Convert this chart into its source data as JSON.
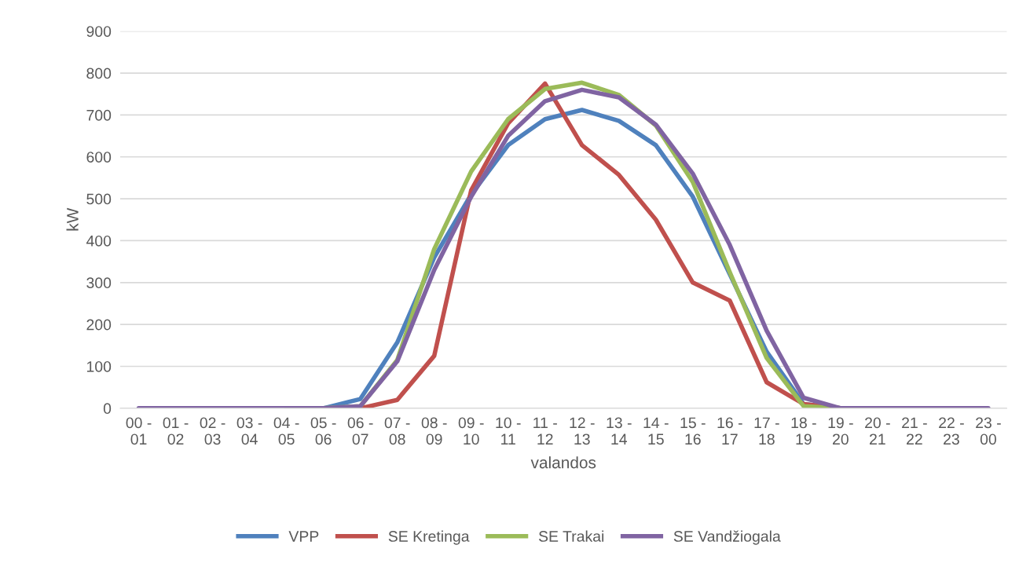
{
  "chart_data": {
    "type": "line",
    "xlabel": "valandos",
    "ylabel": "kW",
    "categories": [
      "00 -\n01",
      "01 -\n02",
      "02 -\n03",
      "03 -\n04",
      "04 -\n05",
      "05 -\n06",
      "06 -\n07",
      "07 -\n08",
      "08 -\n09",
      "09 -\n10",
      "10 -\n11",
      "11 -\n12",
      "12 -\n13",
      "13 -\n14",
      "14 -\n15",
      "15 -\n16",
      "16 -\n17",
      "17 -\n18",
      "18 -\n19",
      "19 -\n20",
      "20 -\n21",
      "21 -\n22",
      "22 -\n23",
      "23 -\n00"
    ],
    "series": [
      {
        "name": "VPP",
        "color": "#4f81bd",
        "values": [
          null,
          null,
          null,
          null,
          0,
          0,
          22,
          157,
          360,
          510,
          628,
          690,
          712,
          686,
          628,
          505,
          320,
          135,
          10,
          0,
          0,
          null,
          null,
          null
        ]
      },
      {
        "name": "SE Kretinga",
        "color": "#c0504d",
        "values": [
          null,
          null,
          null,
          null,
          null,
          0,
          0,
          20,
          125,
          520,
          680,
          775,
          628,
          557,
          450,
          300,
          257,
          62,
          10,
          0,
          0,
          null,
          null,
          null
        ]
      },
      {
        "name": "SE Trakai",
        "color": "#9bbb59",
        "values": [
          null,
          null,
          null,
          null,
          0,
          0,
          5,
          115,
          380,
          565,
          690,
          762,
          777,
          748,
          675,
          540,
          325,
          120,
          5,
          0,
          0,
          null,
          null,
          null
        ]
      },
      {
        "name": "SE Vandžiogala",
        "color": "#8064a2",
        "values": [
          0,
          0,
          0,
          0,
          0,
          0,
          5,
          112,
          330,
          505,
          650,
          733,
          760,
          742,
          677,
          560,
          390,
          185,
          25,
          0,
          0,
          0,
          0,
          0
        ]
      }
    ],
    "ylim": [
      0,
      900
    ],
    "yticks": [
      0,
      100,
      200,
      300,
      400,
      500,
      600,
      700,
      800,
      900
    ],
    "grid": "y",
    "legend": "bottom",
    "marker": "none",
    "line_style": "solid"
  }
}
